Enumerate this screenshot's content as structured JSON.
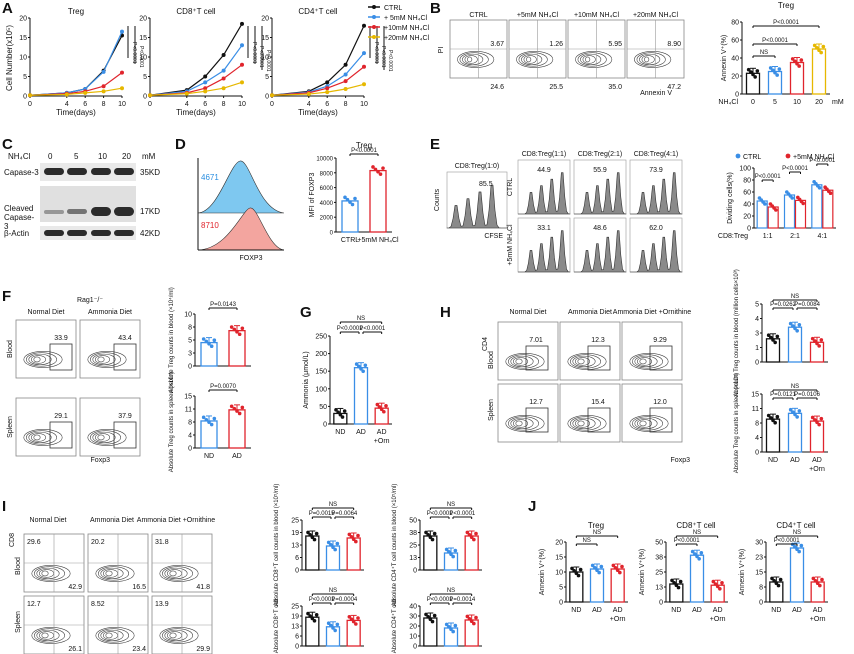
{
  "panel_letters": [
    "A",
    "B",
    "C",
    "D",
    "E",
    "F",
    "G",
    "H",
    "I",
    "J"
  ],
  "chart_data": [
    {
      "id": "A",
      "type": "line",
      "ylabel": "Cell Number(x10⁵)",
      "xlabel": "Time(days)",
      "x": [
        0,
        4,
        6,
        8,
        10
      ],
      "ylim": [
        0,
        20
      ],
      "legend": [
        "CTRL",
        "+ 5mM NH₄Cl",
        "+10mM NH₄Cl",
        "+20mM NH₄Cl"
      ],
      "colors": [
        "#111111",
        "#3a8ee6",
        "#e0242c",
        "#e6b800"
      ],
      "subplots": [
        {
          "title": "Treg",
          "series": [
            [
              0.2,
              0.8,
              1.8,
              6.5,
              15.5
            ],
            [
              0.2,
              0.8,
              1.8,
              6.2,
              16.5
            ],
            [
              0.2,
              0.6,
              1.2,
              2.5,
              6.0
            ],
            [
              0.2,
              0.4,
              0.8,
              1.2,
              2.0
            ]
          ],
          "pvalues": [
            "P<0.0001",
            "P<0.0001"
          ]
        },
        {
          "title": "CD8⁺T cell",
          "series": [
            [
              0.2,
              1.5,
              5.0,
              10.5,
              18.5
            ],
            [
              0.2,
              1.2,
              3.5,
              6.5,
              13.0
            ],
            [
              0.2,
              0.8,
              2.0,
              4.5,
              8.0
            ],
            [
              0.2,
              0.6,
              1.2,
              2.0,
              3.5
            ]
          ],
          "pvalues": [
            "P<0.0001",
            "P<0.0001",
            "P<0.0001"
          ]
        },
        {
          "title": "CD4⁺T cell",
          "series": [
            [
              0.2,
              1.2,
              3.5,
              8.0,
              18.0
            ],
            [
              0.2,
              1.0,
              2.5,
              5.5,
              11.0
            ],
            [
              0.2,
              0.8,
              2.0,
              3.8,
              7.5
            ],
            [
              0.2,
              0.5,
              1.0,
              1.8,
              3.0
            ]
          ],
          "pvalues": [
            "P<0.0001",
            "P<0.0001",
            "P<0.0001"
          ]
        }
      ]
    },
    {
      "id": "B",
      "type": "bar",
      "title": "Treg",
      "ylabel": "Annexin V⁺(%)",
      "xlabel_prefix": "NH₄Cl",
      "categories": [
        "0",
        "5",
        "10",
        "20"
      ],
      "unit": "mM",
      "values": [
        23,
        25,
        35,
        50
      ],
      "ylim": [
        0,
        80
      ],
      "colors": [
        "#111111",
        "#3a8ee6",
        "#e0242c",
        "#e6b800"
      ],
      "brackets": [
        "NS",
        "P<0.0001",
        "P<0.0001"
      ],
      "flow_titles": [
        "CTRL",
        "+5mM NH₄Cl",
        "+10mM NH₄Cl",
        "+20mM NH₄Cl"
      ],
      "flow_top_right": [
        "3.67",
        "1.26",
        "5.95",
        "8.90"
      ],
      "flow_bottom_left": [
        "24.6",
        "25.5",
        "35.0",
        "47.2"
      ],
      "flow_xlabel": "Annexin V",
      "flow_ylabel": "PI"
    },
    {
      "id": "D",
      "type": "bar",
      "title": "Treg",
      "ylabel": "MFI of FOXP3",
      "categories": [
        "CTRL",
        "+5mM NH₄Cl"
      ],
      "values": [
        4200,
        8300
      ],
      "ylim": [
        0,
        10000
      ],
      "colors": [
        "#3a8ee6",
        "#e0242c"
      ],
      "brackets": [
        "P<0.0001"
      ],
      "histogram_labels": [
        "4671",
        "8710"
      ],
      "histogram_xlabel": "FOXP3"
    },
    {
      "id": "E",
      "type": "bar",
      "ylabel": "Dividing cells(%)",
      "xlabel_prefix": "CD8:Treg",
      "categories": [
        "1:1",
        "2:1",
        "4:1"
      ],
      "legend": [
        "CTRL",
        "+5mM NH₄Cl"
      ],
      "series": [
        {
          "name": "CTRL",
          "values": [
            45,
            55,
            72
          ]
        },
        {
          "name": "+5mM NH₄Cl",
          "values": [
            35,
            46,
            63
          ]
        }
      ],
      "ylim": [
        0,
        100
      ],
      "colors": [
        "#3a8ee6",
        "#e0242c"
      ],
      "brackets": [
        "P<0.0001",
        "P<0.0001",
        "P<0.0001"
      ],
      "hist_single_title": "CD8:Treg(1:0)",
      "hist_single_value": "85.5",
      "hist_titles": [
        "CD8:Treg(1:1)",
        "CD8:Treg(2:1)",
        "CD8:Treg(4:1)"
      ],
      "hist_ctrl_values": [
        "44.9",
        "55.9",
        "73.9"
      ],
      "hist_nh4_values": [
        "33.1",
        "48.6",
        "62.0"
      ],
      "row_labels": [
        "CTRL",
        "+5mM NH₄Cl"
      ],
      "xlabel": "CFSE",
      "ylabel_counts": "Counts"
    },
    {
      "id": "F",
      "type": "bar",
      "strain": "Rag1⁻/⁻",
      "categories": [
        "ND",
        "AD"
      ],
      "colors": [
        "#3a8ee6",
        "#e0242c"
      ],
      "flow_titles": [
        "Normal Diet",
        "Ammonia Diet"
      ],
      "row_labels": [
        "Blood",
        "Spleen"
      ],
      "flow_xlabel": "Foxp3",
      "flow_blood_values": [
        "33.9",
        "43.4"
      ],
      "flow_spleen_values": [
        "29.1",
        "37.9"
      ],
      "subplots": [
        {
          "ylabel": "Absolute Treg counts in blood (×10⁴/ml)",
          "values": [
            4.5,
            6.8
          ],
          "ylim": [
            0,
            10
          ],
          "pvalue": "P=0.0143"
        },
        {
          "ylabel": "Absolute Treg counts in spleen (×10⁵)",
          "values": [
            7.8,
            11.0
          ],
          "ylim": [
            0,
            15
          ],
          "pvalue": "P=0.0070"
        }
      ]
    },
    {
      "id": "G",
      "type": "bar",
      "ylabel": "Ammonia (μmol/L)",
      "categories": [
        "ND",
        "AD",
        "AD +Orn"
      ],
      "values": [
        30,
        160,
        45
      ],
      "ylim": [
        0,
        250
      ],
      "colors": [
        "#111111",
        "#3a8ee6",
        "#e0242c"
      ],
      "brackets": [
        "NS",
        "P<0.0001",
        "P<0.0001"
      ]
    },
    {
      "id": "H",
      "type": "bar",
      "categories": [
        "ND",
        "AD",
        "AD +Orn"
      ],
      "colors": [
        "#111111",
        "#3a8ee6",
        "#e0242c"
      ],
      "flow_titles": [
        "Normal Diet",
        "Ammonia Diet",
        "Ammonia Diet +Ornithine"
      ],
      "row_labels": [
        "Blood",
        "Spleen"
      ],
      "flow_xlabel": "Foxp3",
      "flow_ylabel": "CD4",
      "flow_blood_values": [
        "7.01",
        "12.3",
        "9.29"
      ],
      "flow_spleen_values": [
        "12.7",
        "15.4",
        "12.0"
      ],
      "subplots": [
        {
          "ylabel": "Absolute Treg counts in blood (million cells×10³)",
          "values": [
            2.0,
            3.0,
            1.7
          ],
          "ylim": [
            0,
            5
          ],
          "brackets": [
            "NS",
            "P=0.0262",
            "P=0.0084"
          ]
        },
        {
          "ylabel": "Absolute Treg counts in spleen (×10⁵)",
          "values": [
            8.5,
            10.0,
            8.0
          ],
          "ylim": [
            0,
            15
          ],
          "brackets": [
            "NS",
            "P=0.0121",
            "P=0.0106"
          ]
        }
      ]
    },
    {
      "id": "I",
      "type": "bar",
      "categories": [
        "ND",
        "AD",
        "AD +Orn"
      ],
      "colors": [
        "#111111",
        "#3a8ee6",
        "#e0242c"
      ],
      "flow_titles": [
        "Normal Diet",
        "Ammonia Diet",
        "Ammonia Diet +Ornithine"
      ],
      "row_labels": [
        "Blood",
        "Spleen"
      ],
      "flow_ylabel": "CD8",
      "flow_blood_tl": [
        "29.6",
        "20.2",
        "31.8"
      ],
      "flow_blood_br": [
        "42.9",
        "16.5",
        "41.8"
      ],
      "flow_spleen_tl": [
        "12.7",
        "8.52",
        "13.9"
      ],
      "flow_spleen_br": [
        "26.1",
        "23.4",
        "29.9"
      ],
      "subplots": [
        {
          "ylabel": "Absolute CD8⁺T cell counts in blood (×10⁵/ml)",
          "values": [
            17,
            12,
            16
          ],
          "ylim": [
            0,
            25
          ],
          "brackets": [
            "NS",
            "P=0.0015",
            "P=0.0064"
          ]
        },
        {
          "ylabel": "Absolute CD4⁺T cell counts in blood (×10⁵/ml)",
          "values": [
            34,
            17,
            34
          ],
          "ylim": [
            0,
            50
          ],
          "brackets": [
            "NS",
            "P<0.0001",
            "P<0.0001"
          ]
        },
        {
          "ylabel": "Absolute CD8⁺T cell",
          "values": [
            18,
            12,
            16
          ],
          "ylim": [
            0,
            25
          ],
          "brackets": [
            "NS",
            "P<0.0001",
            "P=0.0004"
          ]
        },
        {
          "ylabel": "Absolute CD4⁺T cell",
          "values": [
            28,
            18,
            26
          ],
          "ylim": [
            0,
            40
          ],
          "brackets": [
            "NS",
            "P<0.0001",
            "P=0.0014"
          ]
        }
      ]
    },
    {
      "id": "J",
      "type": "bar",
      "categories": [
        "ND",
        "AD",
        "AD +Orn"
      ],
      "colors": [
        "#111111",
        "#3a8ee6",
        "#e0242c"
      ],
      "ylabel": "Annexin V⁺(%)",
      "subplots": [
        {
          "title": "Treg",
          "values": [
            10,
            11,
            11
          ],
          "ylim": [
            0,
            20
          ],
          "brackets": [
            "NS",
            "NS"
          ]
        },
        {
          "title": "CD8⁺T cell",
          "values": [
            15,
            39,
            14
          ],
          "ylim": [
            0,
            50
          ],
          "brackets": [
            "NS",
            "P<0.0001"
          ]
        },
        {
          "title": "CD4⁺T cell",
          "values": [
            10,
            27,
            10
          ],
          "ylim": [
            0,
            30
          ],
          "brackets": [
            "NS",
            "P<0.0001"
          ]
        }
      ]
    }
  ],
  "blot": {
    "nh4cl_label": "NH₄Cl",
    "concentrations": [
      "0",
      "5",
      "10",
      "20"
    ],
    "unit": "mM",
    "rows": [
      "Capase-3",
      "Cleaved Capase-3",
      "β-Actin"
    ],
    "sizes": [
      "35KD",
      "17KD",
      "42KD"
    ]
  }
}
